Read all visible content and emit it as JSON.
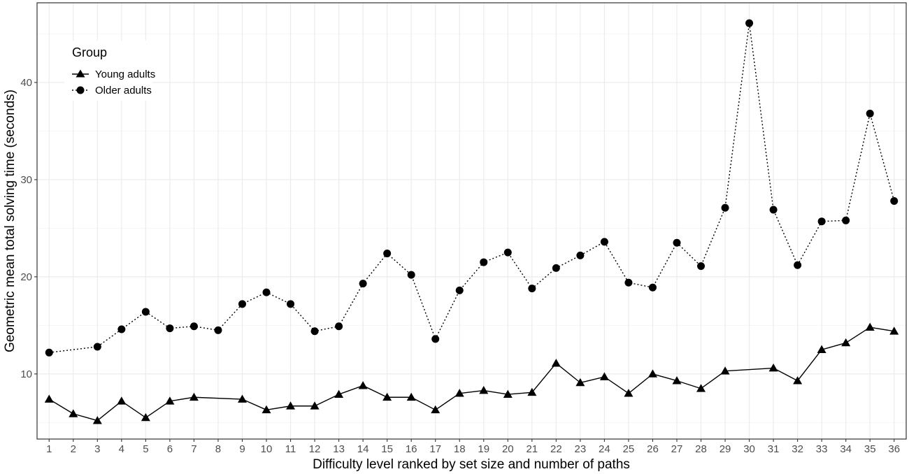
{
  "chart_data": {
    "type": "line",
    "title": "",
    "xlabel": "Difficulty level ranked by set size and number of paths",
    "ylabel": "Geometric mean total solving time (seconds)",
    "x": [
      1,
      2,
      3,
      4,
      5,
      6,
      7,
      8,
      9,
      10,
      11,
      12,
      13,
      14,
      15,
      16,
      17,
      18,
      19,
      20,
      21,
      22,
      23,
      24,
      25,
      26,
      27,
      28,
      29,
      30,
      31,
      32,
      33,
      34,
      35,
      36
    ],
    "xlim": [
      0.5,
      36.5
    ],
    "ylim": [
      3.3,
      48.2
    ],
    "y_ticks": [
      10,
      20,
      30,
      40
    ],
    "grid": true,
    "legend": {
      "title": "Group",
      "placement": "top-left"
    },
    "series": [
      {
        "name": "Young adults",
        "marker": "triangle",
        "line_style": "solid",
        "x": [
          1,
          2,
          3,
          4,
          5,
          6,
          7,
          9,
          10,
          11,
          12,
          13,
          14,
          15,
          16,
          17,
          18,
          19,
          20,
          21,
          22,
          23,
          24,
          25,
          26,
          27,
          28,
          29,
          31,
          32,
          33,
          34,
          35,
          36
        ],
        "values": [
          7.4,
          5.9,
          5.2,
          7.2,
          5.5,
          7.2,
          7.6,
          7.4,
          6.3,
          6.7,
          6.7,
          7.9,
          8.8,
          7.6,
          7.6,
          6.3,
          8.0,
          8.3,
          7.9,
          8.1,
          11.1,
          9.1,
          9.7,
          8.0,
          10.0,
          9.3,
          8.5,
          10.3,
          10.6,
          9.3,
          12.5,
          13.2,
          14.8,
          14.4
        ]
      },
      {
        "name": "Older adults",
        "marker": "circle",
        "line_style": "dotted",
        "x": [
          1,
          3,
          4,
          5,
          6,
          7,
          8,
          9,
          10,
          11,
          12,
          13,
          14,
          15,
          16,
          17,
          18,
          19,
          20,
          21,
          22,
          23,
          24,
          25,
          26,
          27,
          28,
          29,
          30,
          31,
          32,
          33,
          34,
          35,
          36
        ],
        "values": [
          12.2,
          12.8,
          14.6,
          16.4,
          14.7,
          14.9,
          14.5,
          17.2,
          18.4,
          17.2,
          14.4,
          14.9,
          19.3,
          22.4,
          20.2,
          13.6,
          18.6,
          21.5,
          22.5,
          18.8,
          20.9,
          22.2,
          23.6,
          19.4,
          18.9,
          23.5,
          21.1,
          27.1,
          46.1,
          26.9,
          21.2,
          25.7,
          25.8,
          36.8,
          27.8
        ]
      }
    ]
  }
}
